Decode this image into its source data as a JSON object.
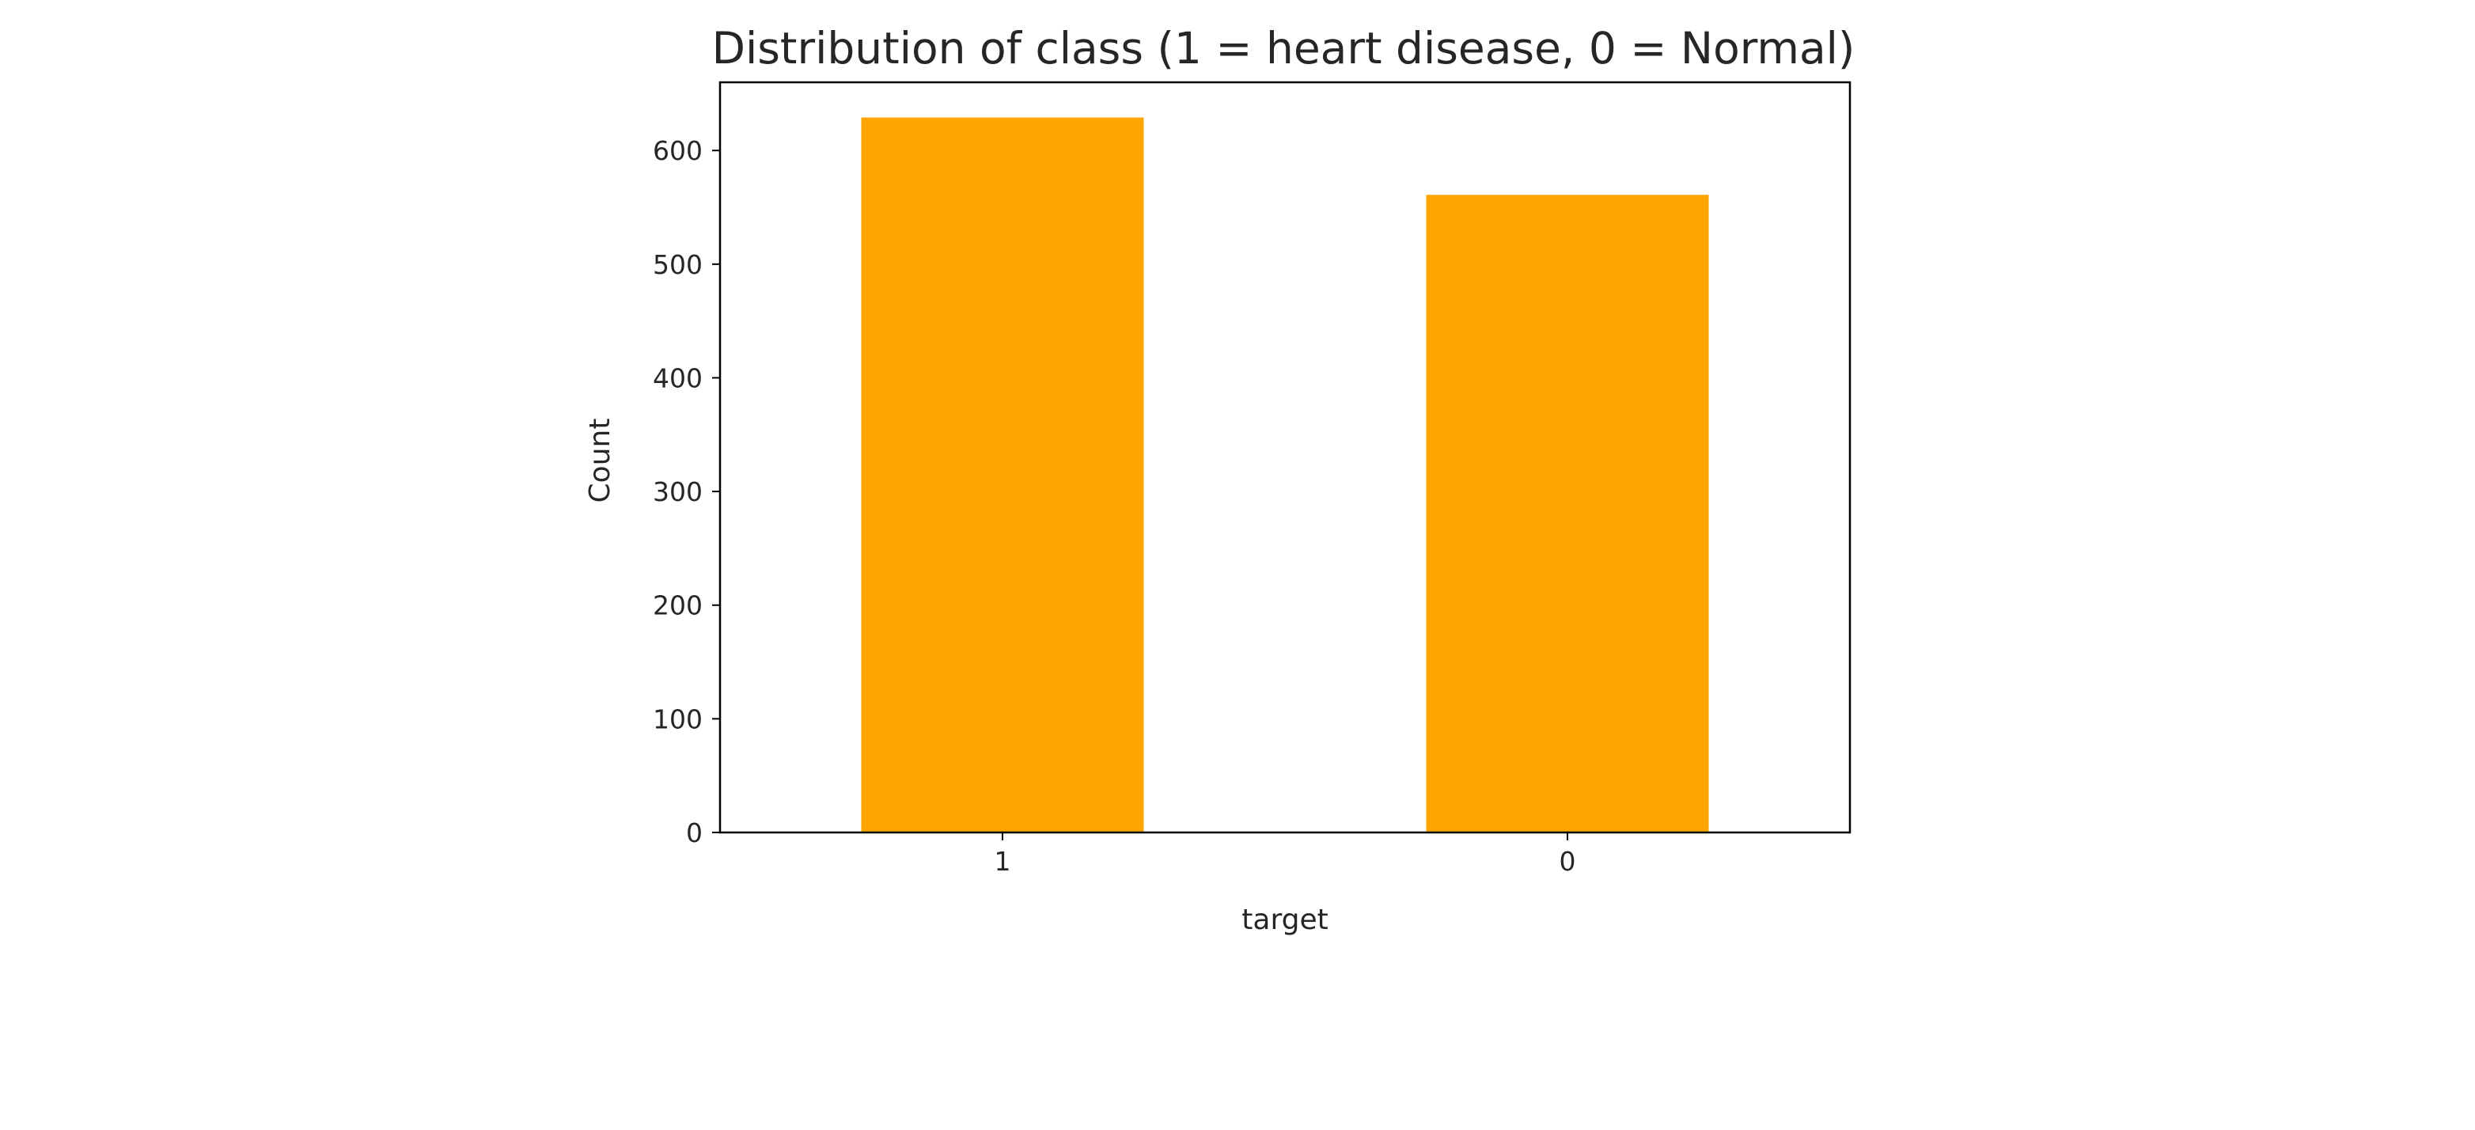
{
  "chart_data": {
    "type": "bar",
    "title": "Distribution of class (1 = heart disease, 0 = Normal)",
    "xlabel": "target",
    "ylabel": "Count",
    "categories": [
      "1",
      "0"
    ],
    "values": [
      629,
      561
    ],
    "ylim": [
      0,
      660
    ],
    "yticks": [
      0,
      100,
      200,
      300,
      400,
      500,
      600
    ],
    "grid": false,
    "legend": "none",
    "bar_color": "#ffa500",
    "axis_color": "#000000",
    "text_color": "#262626"
  }
}
